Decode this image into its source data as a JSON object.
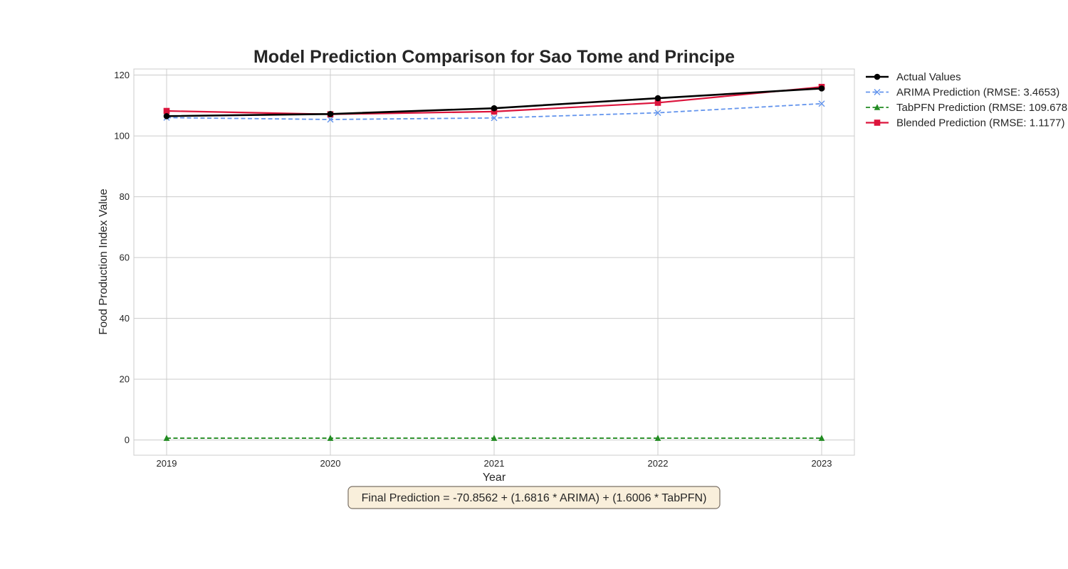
{
  "chart_data": {
    "type": "line",
    "title": "Model Prediction Comparison for Sao Tome and Principe",
    "xlabel": "Year",
    "ylabel": "Food Production Index Value",
    "x": [
      2019,
      2020,
      2021,
      2022,
      2023
    ],
    "x_tick_labels": [
      "2019",
      "2020",
      "2021",
      "2022",
      "2023"
    ],
    "xlim": [
      2018.8,
      2023.2
    ],
    "ylim": [
      -5,
      122
    ],
    "y_ticks": [
      0,
      20,
      40,
      60,
      80,
      100,
      120
    ],
    "y_tick_labels": [
      "0",
      "20",
      "40",
      "60",
      "80",
      "100",
      "120"
    ],
    "grid": true,
    "legend_position": "outside top-right",
    "series": [
      {
        "name": "Actual Values",
        "values": [
          106.5,
          107.2,
          109.1,
          112.4,
          115.6
        ],
        "color": "#000000",
        "line_style": "solid",
        "marker": "circle"
      },
      {
        "name": "ARIMA Prediction (RMSE: 3.4653)",
        "values": [
          106.0,
          105.4,
          105.9,
          107.6,
          110.6
        ],
        "color": "#6495ED",
        "line_style": "dashed",
        "marker": "x"
      },
      {
        "name": "TabPFN Prediction (RMSE: 109.678",
        "values": [
          0.6,
          0.6,
          0.6,
          0.6,
          0.6
        ],
        "color": "#228B22",
        "line_style": "dashed",
        "marker": "triangle"
      },
      {
        "name": "Blended Prediction (RMSE: 1.1177)",
        "values": [
          108.2,
          107.1,
          108.0,
          110.9,
          116.1
        ],
        "color": "#DC143C",
        "line_style": "solid",
        "marker": "square"
      }
    ],
    "annotation": "Final Prediction = -70.8562 + (1.6816 * ARIMA) + (1.6006 * TabPFN)"
  }
}
